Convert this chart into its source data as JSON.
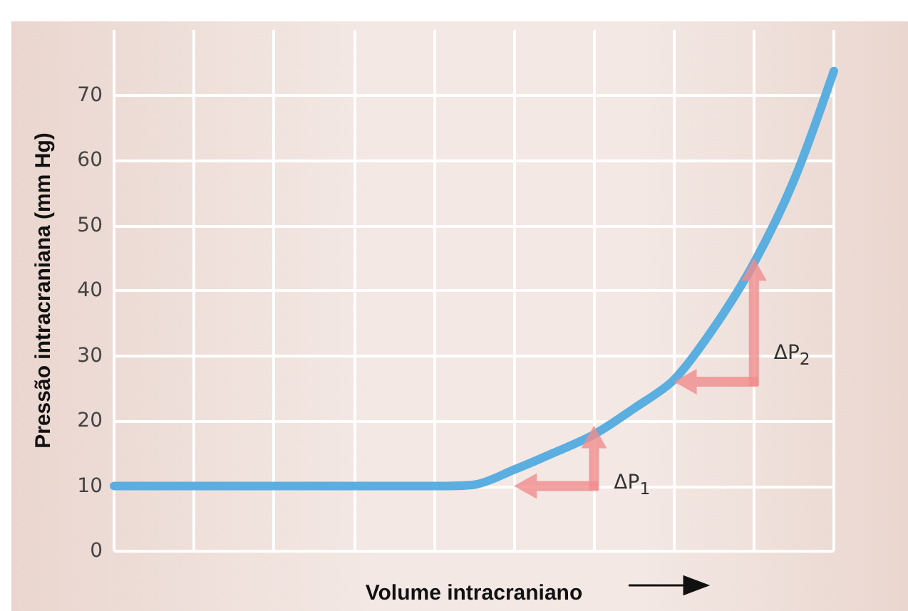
{
  "chart_data": {
    "type": "line",
    "xlabel": "Volume intracraniano",
    "ylabel": "Pressão intracraniana (mm Hg)",
    "categories": [
      null,
      null,
      null,
      null,
      null,
      null,
      null,
      null,
      null,
      null,
      null,
      null,
      null,
      null,
      null,
      null,
      null,
      null,
      null
    ],
    "series": [
      {
        "color": "#5aaee0",
        "values": [
          10,
          10,
          10,
          10,
          10,
          10,
          10,
          10,
          10,
          10.2,
          12.5,
          15.1,
          17.9,
          21.9,
          26.3,
          34.3,
          44.2,
          56.9,
          73.7
        ]
      }
    ],
    "ylim": [
      0,
      80
    ],
    "yticks": [
      0,
      10,
      20,
      30,
      40,
      50,
      60,
      70
    ],
    "grid": true,
    "marker": "none",
    "line_style": "solid",
    "annotations": [
      "ΔP$_{1}$",
      "ΔP$_{2}$"
    ]
  }
}
